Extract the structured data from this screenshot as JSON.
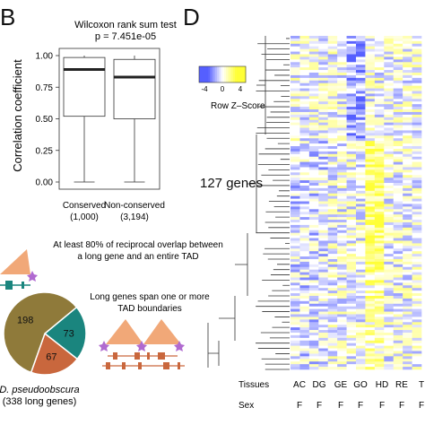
{
  "panels": {
    "b": "B",
    "d": "D"
  },
  "chart_data": [
    {
      "type": "box",
      "title": "Wilcoxon rank sum test",
      "subtitle": "p = 7.451e-05",
      "ylabel": "Correlation coefficient",
      "ylim": [
        0,
        1
      ],
      "yticks": [
        "0.00",
        "0.25",
        "0.50",
        "0.75",
        "1.00"
      ],
      "ytick_values": [
        0,
        0.25,
        0.5,
        0.75,
        1
      ],
      "categories": [
        "Conserved",
        "Non-conserved"
      ],
      "counts": [
        "(1,000)",
        "(3,194)"
      ],
      "boxes": [
        {
          "min": 0.0,
          "q1": 0.52,
          "median": 0.89,
          "q3": 0.985,
          "max": 1.0
        },
        {
          "min": 0.0,
          "q1": 0.5,
          "median": 0.83,
          "q3": 0.97,
          "max": 1.0
        }
      ]
    },
    {
      "type": "pie",
      "slices": [
        {
          "label": "73",
          "value": 73,
          "color": "#1a857e"
        },
        {
          "label": "67",
          "value": 67,
          "color": "#c9673d"
        },
        {
          "label": "198",
          "value": 198,
          "color": "#8f7a3a"
        }
      ],
      "caption": [
        "D. pseudoobscura",
        "(338 long genes)"
      ]
    },
    {
      "type": "heatmap",
      "rows_label": "127 genes",
      "color_key": {
        "title": "Row Z–Score",
        "ticks": [
          "-4",
          "0",
          "4"
        ],
        "low": "#1f2fd0",
        "mid": "#ffffff",
        "high": "#f5f000"
      },
      "row_header_tissues": "Tissues",
      "row_header_sex": "Sex",
      "tissues": [
        "AC",
        "DG",
        "GE",
        "GO",
        "HD",
        "RE",
        "T"
      ],
      "sex": [
        "F",
        "F",
        "F",
        "F",
        "F",
        "F",
        "F"
      ],
      "n_rows": 127,
      "n_cols": 14
    }
  ],
  "annotations": {
    "overlap_text": [
      "At least 80% of reciprocal overlap between",
      "a long gene and an entire TAD"
    ],
    "span_text": [
      "Long genes span one or more",
      "TAD boundaries"
    ]
  }
}
